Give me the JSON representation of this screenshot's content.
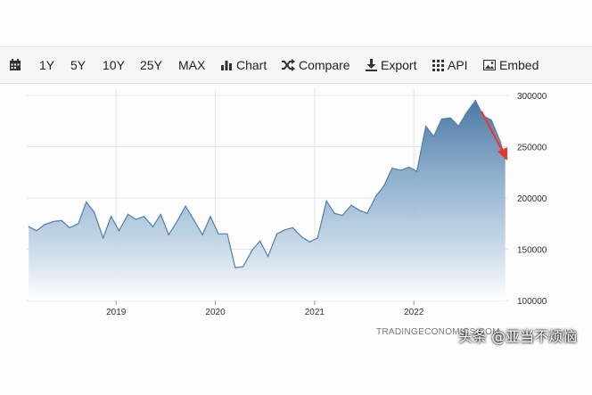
{
  "toolbar": {
    "range_buttons": [
      "1Y",
      "5Y",
      "10Y",
      "25Y",
      "MAX"
    ],
    "chart_label": "Chart",
    "compare_label": "Compare",
    "export_label": "Export",
    "api_label": "API",
    "embed_label": "Embed"
  },
  "watermark": "TRADINGECONOMICS.COM",
  "overlay_caption": "头条 @亚当不烦恼",
  "colors": {
    "line": "#4f7fab",
    "fill_top": "#4a78a4",
    "fill_bottom": "#ffffff",
    "arrow": "#e8372b"
  },
  "chart_data": {
    "type": "area",
    "x_tick_labels": [
      "2019",
      "2020",
      "2021",
      "2022"
    ],
    "y_tick_labels": [
      "300000",
      "250000",
      "200000",
      "150000",
      "100000"
    ],
    "ylim": [
      100000,
      300000
    ],
    "xlim": [
      2018.1,
      2022.95
    ],
    "grid": true,
    "y_axis_side": "right",
    "annotation": "red arrow pointing down at latest value",
    "series": [
      {
        "x": [
          2018.12,
          2018.2,
          2018.28,
          2018.37,
          2018.45,
          2018.53,
          2018.62,
          2018.7,
          2018.78,
          2018.87,
          2018.95,
          2019.03,
          2019.12,
          2019.2,
          2019.28,
          2019.37,
          2019.45,
          2019.53,
          2019.62,
          2019.7,
          2019.78,
          2019.87,
          2019.95,
          2020.03,
          2020.12,
          2020.2,
          2020.28,
          2020.37,
          2020.45,
          2020.53,
          2020.62,
          2020.7,
          2020.78,
          2020.87,
          2020.95,
          2021.03,
          2021.12,
          2021.2,
          2021.28,
          2021.37,
          2021.45,
          2021.53,
          2021.62,
          2021.7,
          2021.78,
          2021.87,
          2021.95,
          2022.03,
          2022.12,
          2022.2,
          2022.28,
          2022.37,
          2022.45,
          2022.53,
          2022.62,
          2022.7,
          2022.78,
          2022.87,
          2022.92
        ],
        "values": [
          172000,
          168000,
          174000,
          177000,
          178000,
          171000,
          175000,
          196000,
          186000,
          161000,
          182000,
          168000,
          184000,
          179000,
          182000,
          172000,
          184000,
          164000,
          178000,
          192000,
          179000,
          164000,
          182000,
          165000,
          165000,
          132000,
          133000,
          149000,
          158000,
          143000,
          165000,
          169000,
          171000,
          162000,
          157000,
          161000,
          197000,
          185000,
          183000,
          193000,
          188000,
          185000,
          202000,
          212000,
          229000,
          227000,
          230000,
          226000,
          270000,
          260000,
          277000,
          278000,
          270000,
          283000,
          295000,
          280000,
          276000,
          255000,
          238000
        ]
      }
    ]
  }
}
